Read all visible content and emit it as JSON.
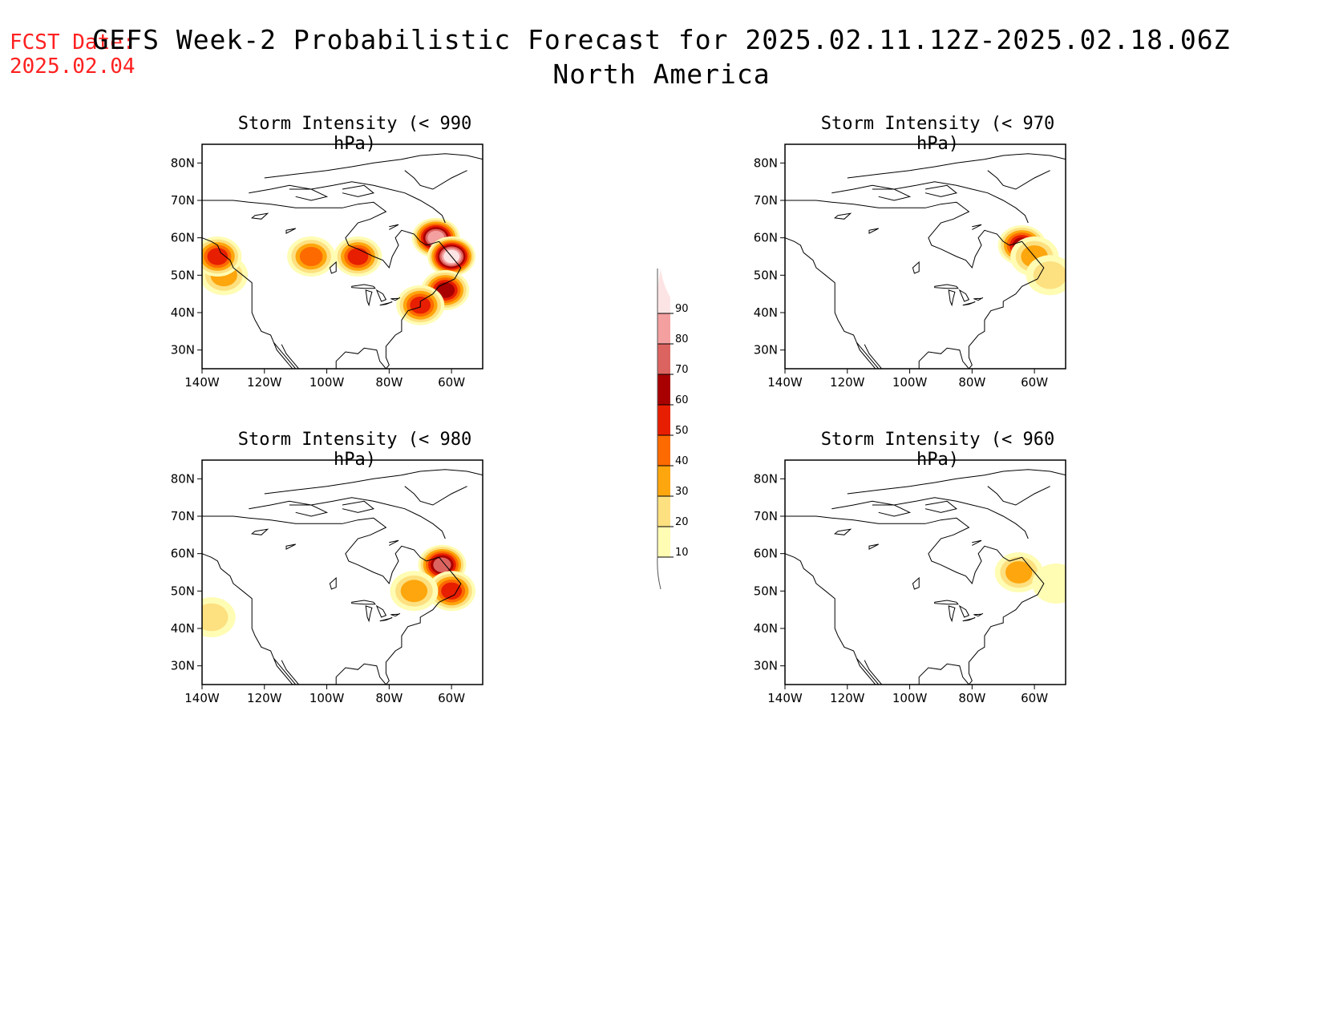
{
  "forecast_date": {
    "label": "FCST Date:",
    "value": "2025.02.04"
  },
  "title": {
    "line1": "GEFS Week-2 Probabilistic Forecast for 2025.02.11.12Z-2025.02.18.06Z",
    "line2": "North America"
  },
  "axes": {
    "lat_ticks": [
      "80N",
      "70N",
      "60N",
      "50N",
      "40N",
      "30N"
    ],
    "lon_ticks": [
      "140W",
      "120W",
      "100W",
      "80W",
      "60W"
    ]
  },
  "colorbar": {
    "levels": [
      "10",
      "20",
      "30",
      "40",
      "50",
      "60",
      "70",
      "80",
      "90"
    ],
    "colors": [
      "#fffcb4",
      "#fde080",
      "#fda60d",
      "#fd6a00",
      "#e81e00",
      "#a80000",
      "#dc6460",
      "#f4a0a0",
      "#fde4e4"
    ]
  },
  "panels": [
    {
      "id": "p990",
      "title": "Storm Intensity (< 990 hPa)"
    },
    {
      "id": "p970",
      "title": "Storm Intensity (< 970 hPa)"
    },
    {
      "id": "p980",
      "title": "Storm Intensity (< 980 hPa)"
    },
    {
      "id": "p960",
      "title": "Storm Intensity (< 960 hPa)"
    }
  ],
  "chart_data": [
    {
      "type": "heatmap",
      "title": "Storm Intensity (< 990 hPa)",
      "xlim": [
        -140,
        -50
      ],
      "ylim": [
        25,
        85
      ],
      "regions": [
        {
          "lon": -133,
          "lat": 50,
          "level": 30
        },
        {
          "lon": -135,
          "lat": 55,
          "level": 50
        },
        {
          "lon": -105,
          "lat": 55,
          "level": 40
        },
        {
          "lon": -90,
          "lat": 55,
          "level": 50
        },
        {
          "lon": -65,
          "lat": 60,
          "level": 80
        },
        {
          "lon": -60,
          "lat": 55,
          "level": 90
        },
        {
          "lon": -62,
          "lat": 46,
          "level": 60
        },
        {
          "lon": -70,
          "lat": 42,
          "level": 50
        }
      ]
    },
    {
      "type": "heatmap",
      "title": "Storm Intensity (< 970 hPa)",
      "xlim": [
        -140,
        -50
      ],
      "ylim": [
        25,
        85
      ],
      "regions": [
        {
          "lon": -64,
          "lat": 58,
          "level": 60
        },
        {
          "lon": -60,
          "lat": 55,
          "level": 30
        },
        {
          "lon": -55,
          "lat": 50,
          "level": 20
        }
      ]
    },
    {
      "type": "heatmap",
      "title": "Storm Intensity (< 980 hPa)",
      "xlim": [
        -140,
        -50
      ],
      "ylim": [
        25,
        85
      ],
      "regions": [
        {
          "lon": -63,
          "lat": 57,
          "level": 70
        },
        {
          "lon": -60,
          "lat": 50,
          "level": 50
        },
        {
          "lon": -72,
          "lat": 50,
          "level": 30
        },
        {
          "lon": -137,
          "lat": 43,
          "level": 20
        }
      ]
    },
    {
      "type": "heatmap",
      "title": "Storm Intensity (< 960 hPa)",
      "xlim": [
        -140,
        -50
      ],
      "ylim": [
        25,
        85
      ],
      "regions": [
        {
          "lon": -65,
          "lat": 55,
          "level": 30
        },
        {
          "lon": -53,
          "lat": 52,
          "level": 10
        }
      ]
    }
  ]
}
